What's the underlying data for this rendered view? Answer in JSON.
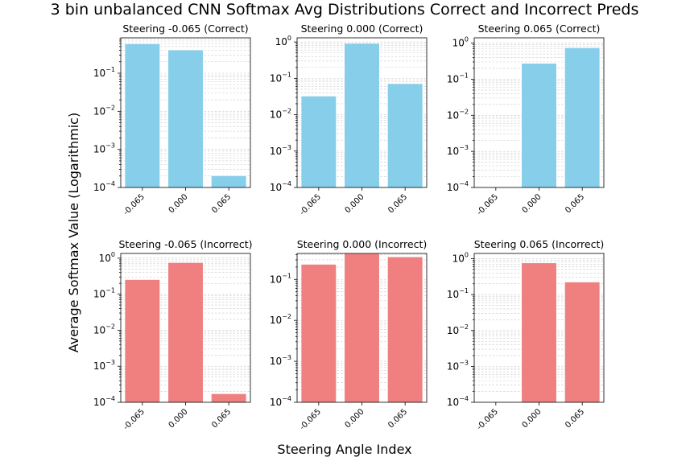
{
  "figure": {
    "title": "3 bin unbalanced CNN Softmax Avg Distributions Correct and Incorrect Preds",
    "xlabel": "Steering Angle Index",
    "ylabel": "Average Softmax Value (Logarithmic)"
  },
  "colors": {
    "correct": "#87CEEB",
    "incorrect": "#F08080",
    "grid": "#c8c8c8"
  },
  "chart_data": [
    {
      "type": "bar",
      "title": "Steering -0.065 (Correct)",
      "categories": [
        "-0.065",
        "0.000",
        "0.065"
      ],
      "values": [
        0.58,
        0.4,
        0.0002
      ],
      "ylim": [
        0.0001,
        0.85
      ],
      "yscale": "log",
      "grid": true,
      "color": "#87CEEB"
    },
    {
      "type": "bar",
      "title": "Steering 0.000 (Correct)",
      "categories": [
        "-0.065",
        "0.000",
        "0.065"
      ],
      "values": [
        0.032,
        0.9,
        0.07
      ],
      "ylim": [
        0.0001,
        1.3
      ],
      "yscale": "log",
      "grid": true,
      "color": "#87CEEB"
    },
    {
      "type": "bar",
      "title": "Steering 0.065 (Correct)",
      "categories": [
        "-0.065",
        "0.000",
        "0.065"
      ],
      "values": [
        0.0,
        0.27,
        0.73
      ],
      "ylim": [
        0.0001,
        1.4
      ],
      "yscale": "log",
      "grid": true,
      "color": "#87CEEB"
    },
    {
      "type": "bar",
      "title": "Steering -0.065 (Incorrect)",
      "categories": [
        "-0.065",
        "0.000",
        "0.065"
      ],
      "values": [
        0.25,
        0.74,
        0.00017
      ],
      "ylim": [
        0.0001,
        1.35
      ],
      "yscale": "log",
      "grid": true,
      "color": "#F08080"
    },
    {
      "type": "bar",
      "title": "Steering 0.000 (Incorrect)",
      "categories": [
        "-0.065",
        "0.000",
        "0.065"
      ],
      "values": [
        0.23,
        0.42,
        0.35
      ],
      "ylim": [
        0.0001,
        0.43
      ],
      "yscale": "log",
      "grid": true,
      "color": "#F08080"
    },
    {
      "type": "bar",
      "title": "Steering 0.065 (Incorrect)",
      "categories": [
        "-0.065",
        "0.000",
        "0.065"
      ],
      "values": [
        0.0,
        0.75,
        0.22
      ],
      "ylim": [
        0.0001,
        1.4
      ],
      "yscale": "log",
      "grid": true,
      "color": "#F08080"
    }
  ]
}
